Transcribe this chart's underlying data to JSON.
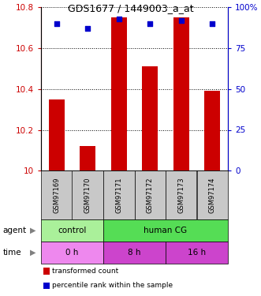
{
  "title": "GDS1677 / 1449003_a_at",
  "samples": [
    "GSM97169",
    "GSM97170",
    "GSM97171",
    "GSM97172",
    "GSM97173",
    "GSM97174"
  ],
  "bar_values": [
    10.35,
    10.12,
    10.75,
    10.51,
    10.75,
    10.39
  ],
  "percentile_values": [
    90,
    87,
    93,
    90,
    92,
    90
  ],
  "bar_color": "#cc0000",
  "percentile_color": "#0000cc",
  "ylim_left": [
    10.0,
    10.8
  ],
  "ylim_right": [
    0,
    100
  ],
  "yticks_left": [
    10.0,
    10.2,
    10.4,
    10.6,
    10.8
  ],
  "yticks_right": [
    0,
    25,
    50,
    75,
    100
  ],
  "yticklabels_left": [
    "10",
    "10.2",
    "10.4",
    "10.6",
    "10.8"
  ],
  "yticklabels_right": [
    "0",
    "25",
    "50",
    "75",
    "100%"
  ],
  "agent_labels": [
    {
      "text": "control",
      "span": [
        0,
        2
      ],
      "color": "#aaf09a"
    },
    {
      "text": "human CG",
      "span": [
        2,
        6
      ],
      "color": "#55dd55"
    }
  ],
  "time_labels": [
    {
      "text": "0 h",
      "span": [
        0,
        2
      ],
      "color": "#ee88ee"
    },
    {
      "text": "8 h",
      "span": [
        2,
        4
      ],
      "color": "#cc44cc"
    },
    {
      "text": "16 h",
      "span": [
        4,
        6
      ],
      "color": "#cc44cc"
    }
  ],
  "legend_items": [
    {
      "label": "transformed count",
      "color": "#cc0000"
    },
    {
      "label": "percentile rank within the sample",
      "color": "#0000cc"
    }
  ],
  "sample_bg_color": "#c8c8c8",
  "bar_width": 0.5,
  "left_label_text": [
    "agent",
    "time"
  ],
  "arrow_char": "▶"
}
